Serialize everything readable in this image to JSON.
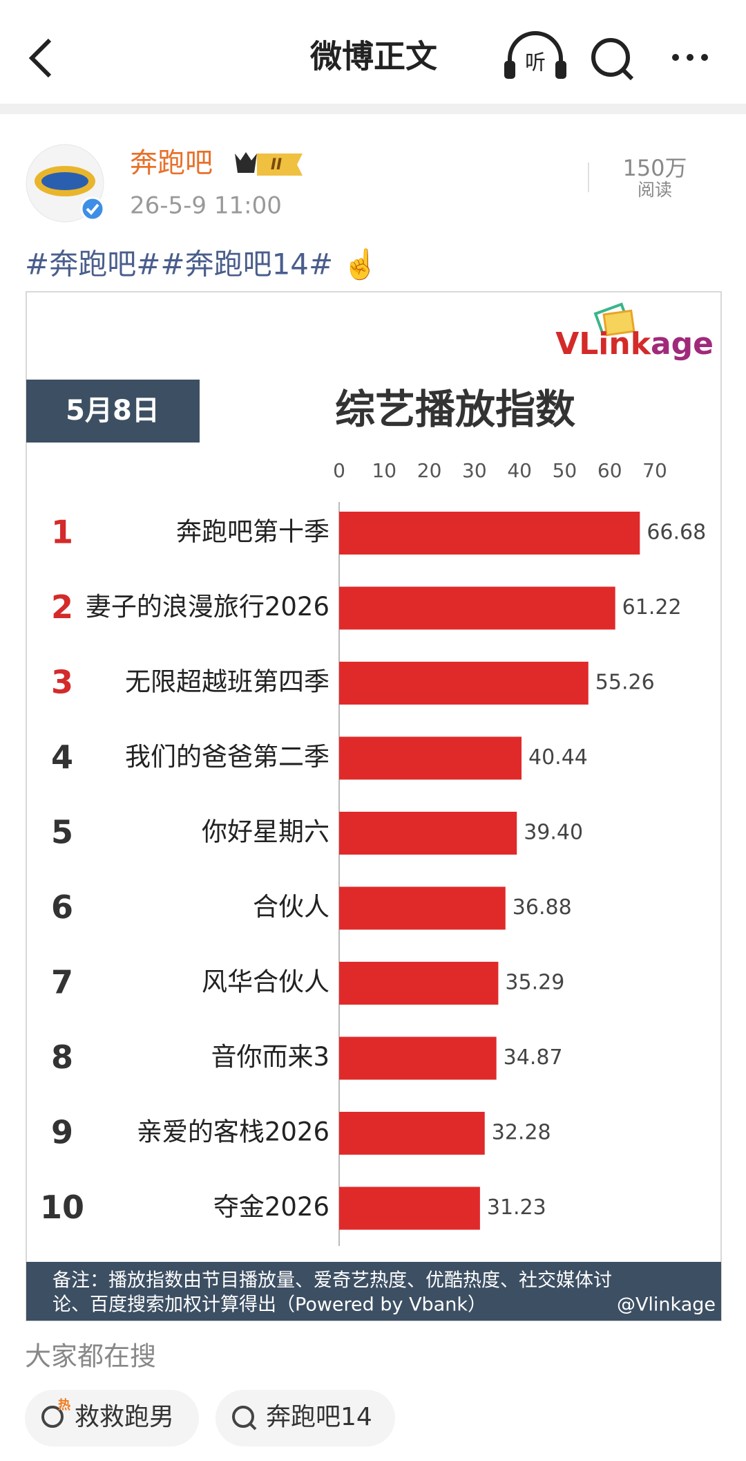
{
  "header": {
    "title": "微博正文",
    "listen": "听"
  },
  "post": {
    "user": "奔跑吧",
    "level": "II",
    "time": "26-5-9 11:00",
    "reads": "150万",
    "reads_label": "阅读",
    "text": "#奔跑吧##奔跑吧14# ☝️"
  },
  "chart_data": {
    "type": "hbar",
    "logo_a": "VLink",
    "logo_b": "age",
    "date": "5月8日",
    "title": "综艺播放指数",
    "ranks": [
      "1",
      "2",
      "3",
      "4",
      "5",
      "6",
      "7",
      "8",
      "9",
      "10"
    ],
    "categories": [
      "奔跑吧第十季",
      "妻子的浪漫旅行2026",
      "无限超越班第四季",
      "我们的爸爸第二季",
      "你好星期六",
      "合伙人",
      "风华合伙人",
      "音你而来3",
      "亲爱的客栈2026",
      "夺金2026"
    ],
    "values": [
      66.68,
      61.22,
      55.26,
      40.44,
      39.4,
      36.88,
      35.29,
      34.87,
      32.28,
      31.23
    ],
    "value_labels": [
      "66.68",
      "61.22",
      "55.26",
      "40.44",
      "39.40",
      "36.88",
      "35.29",
      "34.87",
      "32.28",
      "31.23"
    ],
    "color": "#e02a2a",
    "xlim": [
      0,
      70
    ],
    "xticks": [
      0,
      10,
      20,
      30,
      40,
      50,
      60,
      70
    ],
    "note": [
      "备注：播放指数由节目播放量、爱奇艺热度、优酷热度、社交媒体讨",
      "论、百度搜索加权计算得出（Powered by Vbank）"
    ],
    "credit": "@Vlinkage"
  },
  "search": {
    "title": "大家都在搜",
    "items": [
      "救救跑男",
      "奔跑吧14"
    ]
  }
}
